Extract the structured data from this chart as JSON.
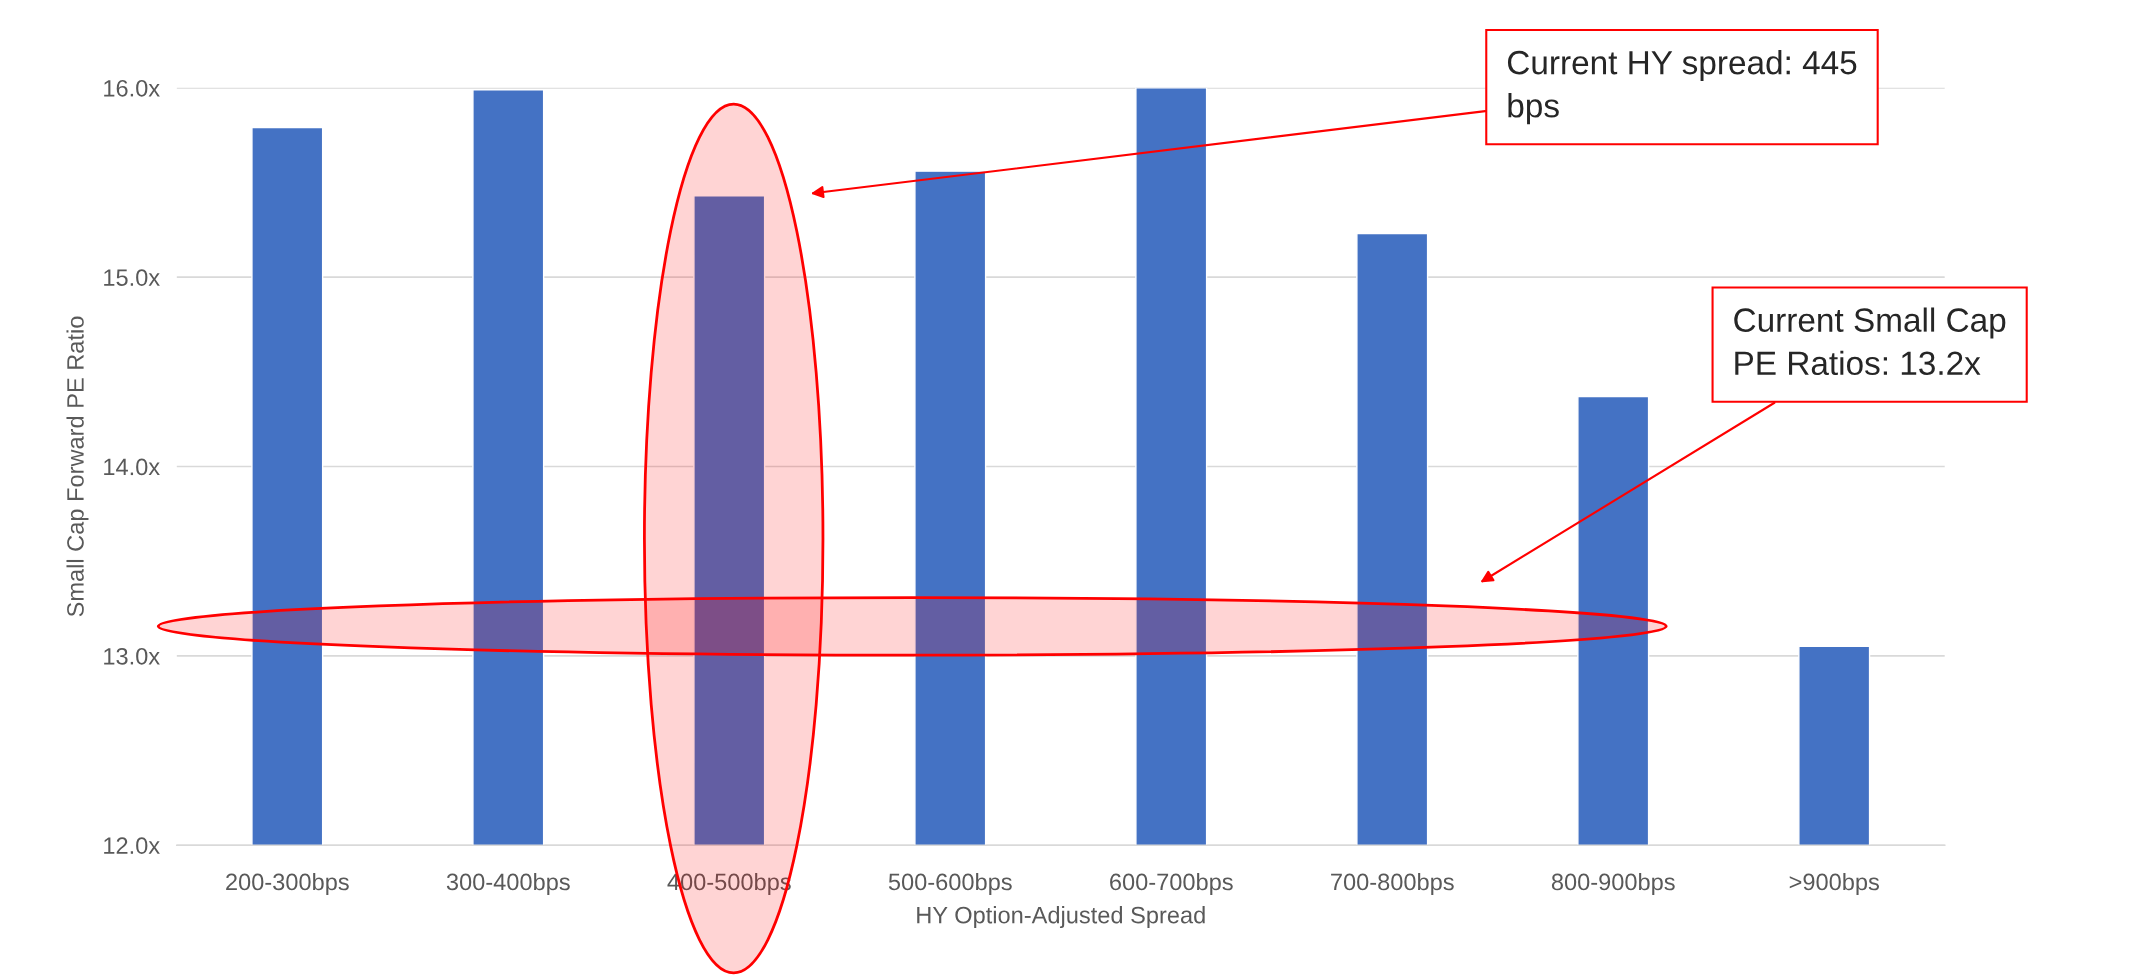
{
  "chart_data": {
    "type": "bar",
    "xlabel": "HY Option-Adjusted Spread",
    "ylabel": "Small Cap Forward PE Ratio",
    "categories": [
      "200-300bps",
      "300-400bps",
      "400-500bps",
      "500-600bps",
      "600-700bps",
      "700-800bps",
      "800-900bps",
      ">900bps"
    ],
    "values": [
      15.79,
      15.99,
      15.43,
      15.56,
      16.0,
      15.23,
      14.37,
      13.05
    ],
    "color": "#4472c4",
    "ylim": [
      12,
      16
    ],
    "yticks": [
      {
        "value": 12,
        "label": "12.0x"
      },
      {
        "value": 13,
        "label": "13.0x"
      },
      {
        "value": 14,
        "label": "14.0x"
      },
      {
        "value": 15,
        "label": "15.0x"
      },
      {
        "value": 16,
        "label": "16.0x"
      }
    ],
    "grid": "y",
    "annotations": [
      "Current HY spread: 445\nbps",
      "Current Small Cap\nPE Ratios: 13.2x"
    ]
  }
}
